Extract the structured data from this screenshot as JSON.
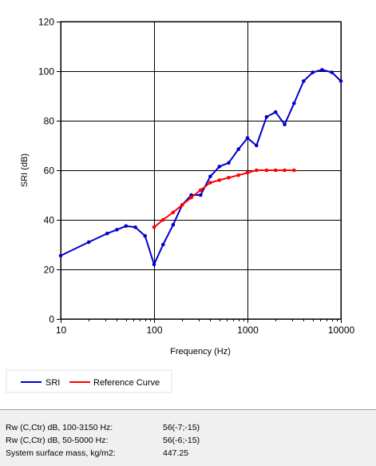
{
  "chart_data": {
    "type": "line",
    "title": "",
    "xlabel": "Frequency (Hz)",
    "ylabel": "SRI (dB)",
    "xscale": "log",
    "xlim": [
      10,
      10000
    ],
    "ylim": [
      0,
      120
    ],
    "xticks": [
      10,
      100,
      1000,
      10000
    ],
    "xtick_labels": [
      "10",
      "100",
      "1000",
      "10000"
    ],
    "yticks": [
      0,
      20,
      40,
      60,
      80,
      100,
      120
    ],
    "ytick_labels": [
      "0",
      "20",
      "40",
      "60",
      "80",
      "100",
      "120"
    ],
    "grid": true,
    "legend_placement": "bottom-left",
    "series": [
      {
        "name": "SRI",
        "color": "#0000cc",
        "x": [
          10,
          20,
          31.5,
          40,
          50,
          63,
          80,
          100,
          125,
          160,
          200,
          250,
          315,
          400,
          500,
          630,
          800,
          1000,
          1250,
          1600,
          2000,
          2500,
          3150,
          4000,
          5000,
          6300,
          8000,
          10000
        ],
        "y": [
          25.5,
          31,
          34.5,
          36,
          37.5,
          37,
          33.5,
          22,
          30,
          38,
          46,
          50,
          50,
          57.5,
          61.5,
          63,
          68.5,
          73,
          70,
          81.5,
          83.5,
          78.5,
          87,
          96,
          99.5,
          100.5,
          99.5,
          96
        ]
      },
      {
        "name": "Reference Curve",
        "color": "#ff0000",
        "x": [
          100,
          125,
          160,
          200,
          250,
          315,
          400,
          500,
          630,
          800,
          1000,
          1250,
          1600,
          2000,
          2500,
          3150
        ],
        "y": [
          37,
          40,
          43,
          46,
          49,
          52,
          55,
          56,
          57,
          58,
          59,
          60,
          60,
          60,
          60,
          60
        ]
      }
    ]
  },
  "info": [
    {
      "label": "Rw (C,Ctr) dB, 100-3150 Hz:",
      "value": "56(-7;-15)"
    },
    {
      "label": "Rw (C,Ctr) dB, 50-5000 Hz:",
      "value": "56(-6;-15)"
    },
    {
      "label": "System surface mass, kg/m2:",
      "value": "447.25"
    }
  ]
}
